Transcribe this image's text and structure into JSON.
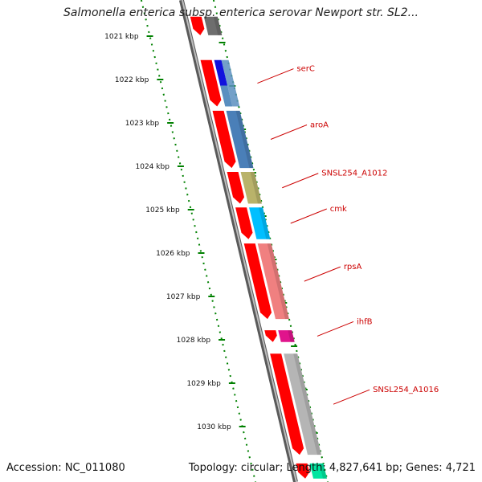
{
  "title": "Salmonella enterica subsp. enterica serovar Newport str. SL2...",
  "footer": {
    "accession": "Accession: NC_011080",
    "summary": "Topology: circular; Length: 4,827,641 bp; Genes: 4,721"
  },
  "colors": {
    "cds": "#ff0000",
    "backbone": "#888888",
    "tick": "#008000",
    "label": "#cc0000"
  },
  "scale": {
    "ticks": [
      {
        "kbp": 1021,
        "label": "1021 kbp"
      },
      {
        "kbp": 1022,
        "label": "1022 kbp"
      },
      {
        "kbp": 1023,
        "label": "1023 kbp"
      },
      {
        "kbp": 1024,
        "label": "1024 kbp"
      },
      {
        "kbp": 1025,
        "label": "1025 kbp"
      },
      {
        "kbp": 1026,
        "label": "1026 kbp"
      },
      {
        "kbp": 1027,
        "label": "1027 kbp"
      },
      {
        "kbp": 1028,
        "label": "1028 kbp"
      },
      {
        "kbp": 1029,
        "label": "1029 kbp"
      },
      {
        "kbp": 1030,
        "label": "1030 kbp"
      }
    ]
  },
  "genes": [
    {
      "name": "",
      "start": 1020.55,
      "end": 1020.98,
      "color": "#6e6e6e"
    },
    {
      "name": "serC",
      "start": 1021.55,
      "end": 1022.62,
      "color": "#1111dd",
      "color2": "#5a8fc0"
    },
    {
      "name": "aroA",
      "start": 1022.72,
      "end": 1024.04,
      "color": "#4a7fb8"
    },
    {
      "name": "SNSL254_A1012",
      "start": 1024.13,
      "end": 1024.86,
      "color": "#b9b36a"
    },
    {
      "name": "cmk",
      "start": 1024.95,
      "end": 1025.68,
      "color": "#00bfff"
    },
    {
      "name": "rpsA",
      "start": 1025.78,
      "end": 1027.52,
      "color": "#f08080"
    },
    {
      "name": "ihfB",
      "start": 1027.78,
      "end": 1028.05,
      "color": "#e0148c"
    },
    {
      "name": "SNSL254_A1016",
      "start": 1028.32,
      "end": 1030.65,
      "color": "#b5b5b5"
    },
    {
      "name": "",
      "start": 1030.85,
      "end": 1031.2,
      "color": "#00e5a0"
    }
  ]
}
